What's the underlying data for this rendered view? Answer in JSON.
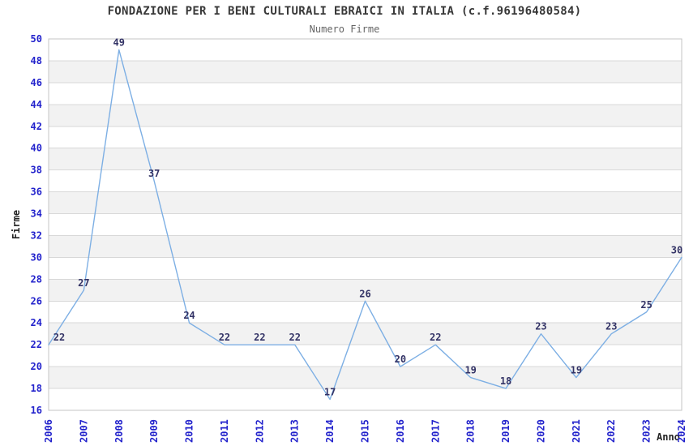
{
  "chart_data": {
    "type": "line",
    "title": "FONDAZIONE PER I BENI CULTURALI EBRAICI IN ITALIA (c.f.96196480584)",
    "subtitle": "Numero Firme",
    "xlabel": "Anno",
    "ylabel": "Firme",
    "x": [
      2006,
      2007,
      2008,
      2009,
      2010,
      2011,
      2012,
      2013,
      2014,
      2015,
      2016,
      2017,
      2018,
      2019,
      2020,
      2021,
      2022,
      2023,
      2024
    ],
    "values": [
      22,
      27,
      49,
      37,
      24,
      22,
      22,
      22,
      17,
      26,
      20,
      22,
      19,
      18,
      23,
      19,
      23,
      25,
      30
    ],
    "series_name": "Numero Firme",
    "ylim": [
      16,
      50
    ],
    "ytick_step": 2,
    "y_ticks": [
      16,
      18,
      20,
      22,
      24,
      26,
      28,
      30,
      32,
      34,
      36,
      38,
      40,
      42,
      44,
      46,
      48,
      50
    ],
    "show_point_labels": true,
    "legend": "none",
    "grid": "horizontal-bands-alternating",
    "colors": {
      "line": "#7dafe4",
      "tick_label": "#2323cc",
      "point_label": "#333366",
      "band": "#f2f2f2",
      "gridline": "#d8d8d8",
      "plot_border": "#c5c5c5",
      "title": "#383838",
      "subtitle": "#666666",
      "axis_title": "#222222",
      "background": "#ffffff"
    }
  }
}
